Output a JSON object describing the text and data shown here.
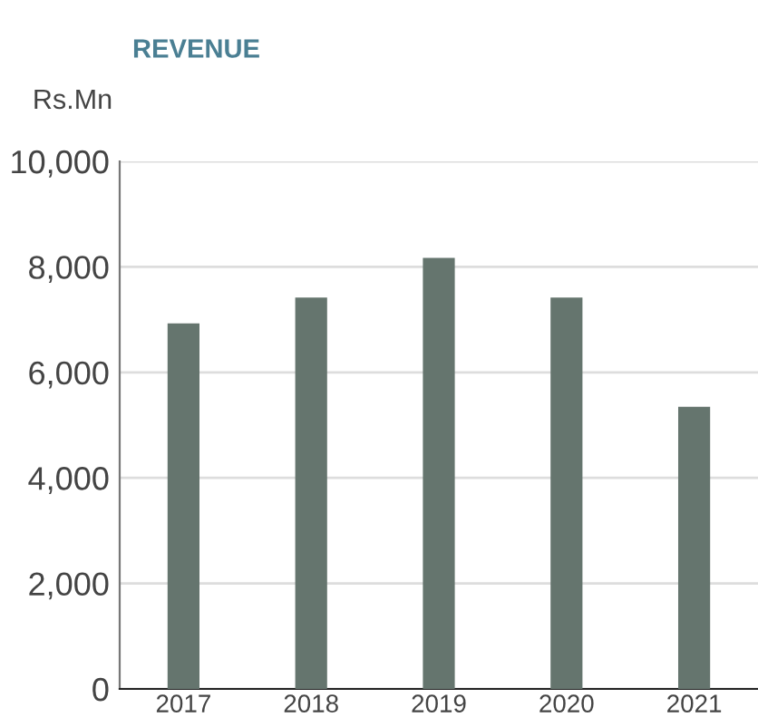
{
  "chart_data": {
    "type": "bar",
    "title": "REVENUE",
    "ylabel": "Rs.Mn",
    "categories": [
      "2017",
      "2018",
      "2019",
      "2020",
      "2021"
    ],
    "values": [
      6930,
      7420,
      8170,
      7420,
      5350
    ],
    "color": "#65756e",
    "ylim": [
      0,
      10000
    ],
    "yticks": [
      {
        "value": 0,
        "label": "0"
      },
      {
        "value": 2000,
        "label": "2,000"
      },
      {
        "value": 4000,
        "label": "4,000"
      },
      {
        "value": 6000,
        "label": "6,000"
      },
      {
        "value": 8000,
        "label": "8,000"
      },
      {
        "value": 10000,
        "label": "10,000"
      }
    ],
    "grid": "y",
    "legend": false
  }
}
